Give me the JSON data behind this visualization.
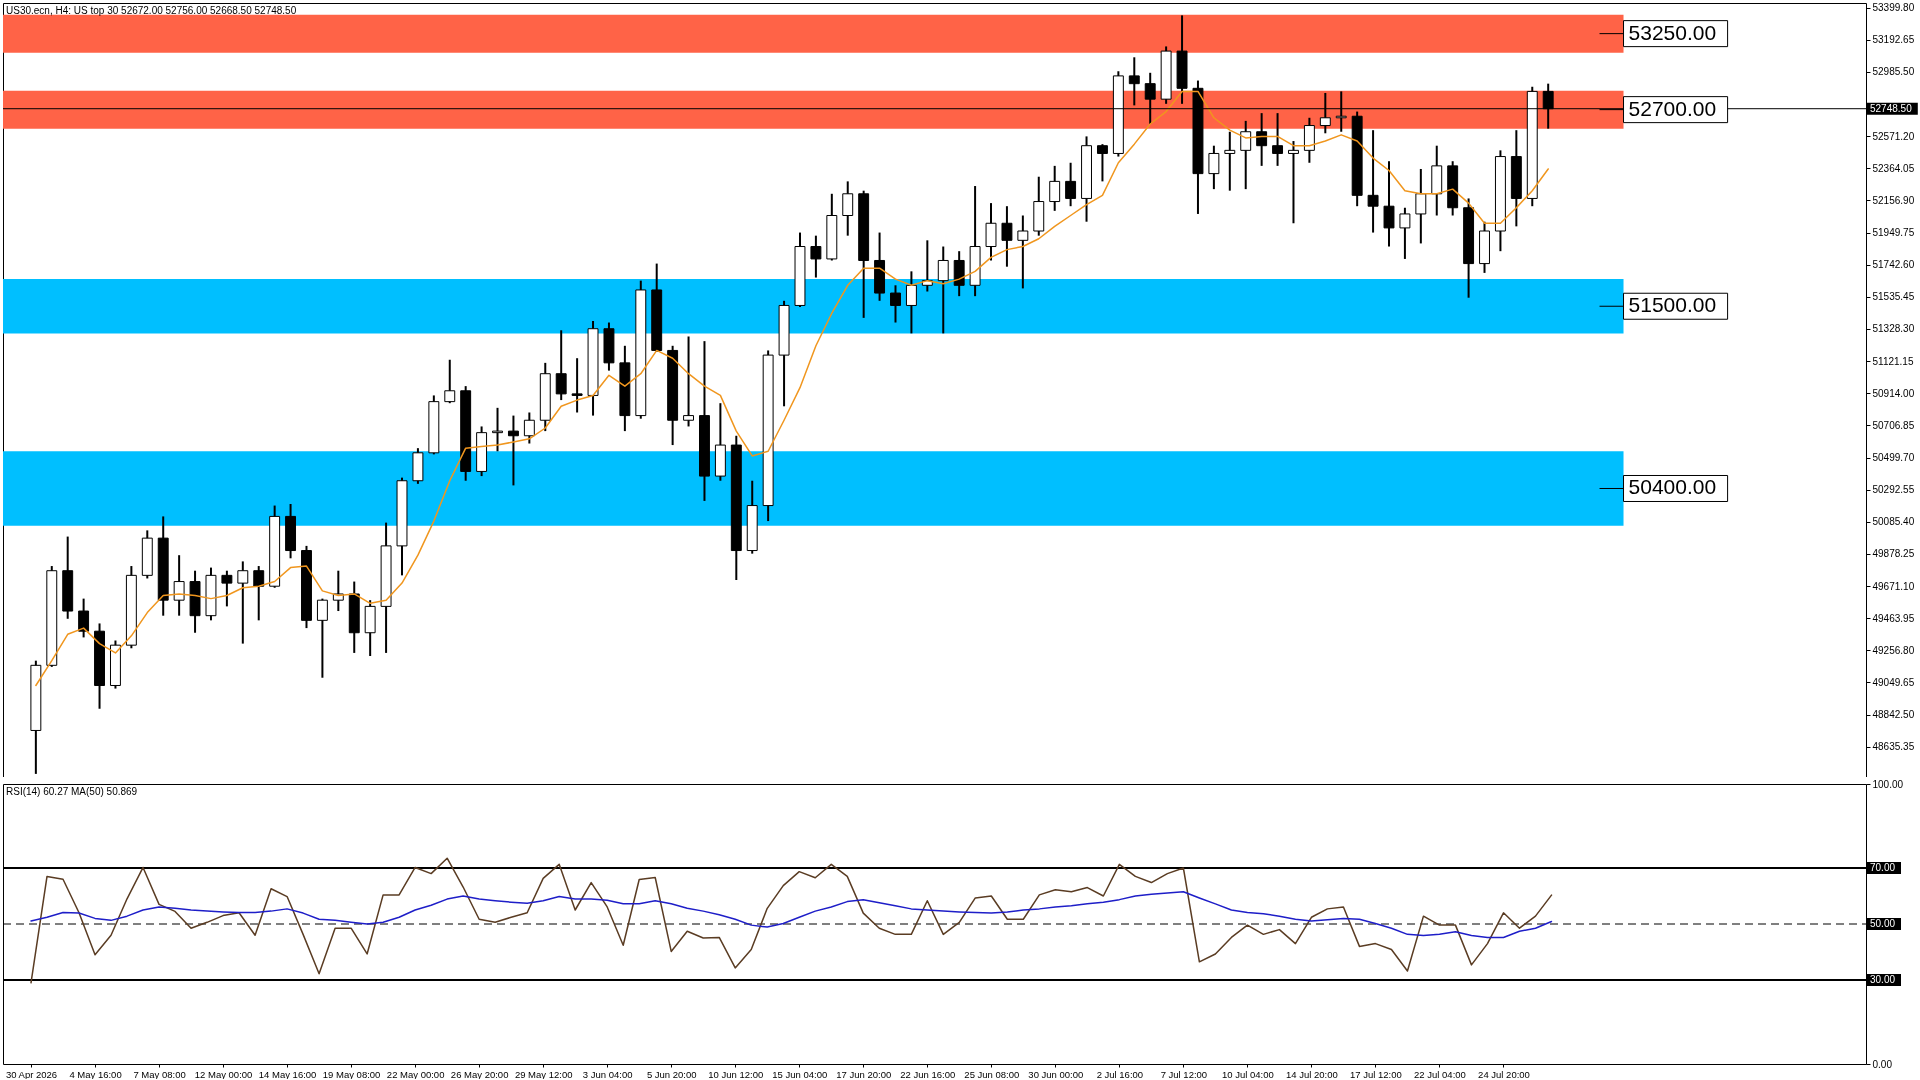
{
  "chart_data": [
    {
      "type": "candlestick",
      "title": "US30.ecn, H4:  US top 30  52672.00 52756.00 52668.50 52748.50",
      "categories": [
        null,
        null,
        null,
        null,
        null,
        null,
        null,
        null,
        null,
        null,
        null,
        null,
        null,
        null,
        null,
        null,
        null,
        null,
        null,
        null,
        null,
        null,
        null,
        null,
        null,
        null,
        null,
        null,
        null,
        null,
        null,
        null,
        null,
        null,
        null,
        null,
        null,
        null,
        null,
        null,
        null,
        null,
        null,
        null,
        null,
        null,
        null,
        null,
        null,
        null,
        null,
        null,
        null,
        null,
        null,
        null,
        null,
        null,
        null,
        null,
        null,
        null,
        null,
        null,
        null,
        null,
        null,
        null,
        null,
        null,
        null,
        null,
        null,
        null,
        null,
        null,
        null,
        null,
        null,
        null,
        null,
        null,
        null,
        null,
        null,
        null,
        null,
        null,
        null,
        null,
        null,
        null,
        null,
        null,
        null,
        null
      ],
      "ohlc": [
        [
          48740,
          49190,
          48460,
          49160
        ],
        [
          49160,
          49800,
          49150,
          49770
        ],
        [
          49770,
          49990,
          49460,
          49510
        ],
        [
          49510,
          49590,
          49340,
          49380
        ],
        [
          49380,
          49430,
          48880,
          49030
        ],
        [
          49030,
          49320,
          49010,
          49290
        ],
        [
          49290,
          49800,
          49270,
          49740
        ],
        [
          49740,
          50030,
          49720,
          49980
        ],
        [
          49980,
          50120,
          49480,
          49580
        ],
        [
          49580,
          49870,
          49480,
          49700
        ],
        [
          49700,
          49770,
          49370,
          49480
        ],
        [
          49480,
          49790,
          49450,
          49740
        ],
        [
          49740,
          49770,
          49540,
          49690
        ],
        [
          49690,
          49830,
          49300,
          49770
        ],
        [
          49770,
          49800,
          49450,
          49670
        ],
        [
          49670,
          50190,
          49660,
          50120
        ],
        [
          50120,
          50200,
          49850,
          49900
        ],
        [
          49900,
          49930,
          49400,
          49450
        ],
        [
          49450,
          49590,
          49080,
          49580
        ],
        [
          49580,
          49770,
          49510,
          49620
        ],
        [
          49620,
          49700,
          49240,
          49370
        ],
        [
          49370,
          49580,
          49220,
          49540
        ],
        [
          49540,
          50080,
          49240,
          49930
        ],
        [
          49930,
          50370,
          49740,
          50350
        ],
        [
          50350,
          50560,
          50330,
          50530
        ],
        [
          50530,
          50900,
          50520,
          50860
        ],
        [
          50860,
          51130,
          50850,
          50930
        ],
        [
          50930,
          50960,
          50350,
          50410
        ],
        [
          50410,
          50700,
          50380,
          50660
        ],
        [
          50660,
          50820,
          50540,
          50670
        ],
        [
          50670,
          50770,
          50320,
          50640
        ],
        [
          50640,
          50790,
          50590,
          50740
        ],
        [
          50740,
          51110,
          50670,
          51040
        ],
        [
          51040,
          51320,
          50870,
          50910
        ],
        [
          50910,
          51140,
          50790,
          50900
        ],
        [
          50900,
          51380,
          50770,
          51330
        ],
        [
          51330,
          51370,
          51060,
          51110
        ],
        [
          51110,
          51220,
          50670,
          50770
        ],
        [
          50770,
          51640,
          50750,
          51580
        ],
        [
          51580,
          51750,
          51180,
          51190
        ],
        [
          51190,
          51220,
          50580,
          50740
        ],
        [
          50740,
          51280,
          50700,
          50770
        ],
        [
          50770,
          51250,
          50220,
          50380
        ],
        [
          50380,
          50850,
          50350,
          50580
        ],
        [
          50580,
          50640,
          49710,
          49900
        ],
        [
          49900,
          50350,
          49880,
          50190
        ],
        [
          50190,
          51190,
          50090,
          51160
        ],
        [
          51160,
          51510,
          50830,
          51480
        ],
        [
          51480,
          51950,
          51470,
          51860
        ],
        [
          51860,
          51930,
          51660,
          51780
        ],
        [
          51780,
          52200,
          51770,
          52060
        ],
        [
          52060,
          52280,
          51930,
          52200
        ],
        [
          52200,
          52220,
          51400,
          51770
        ],
        [
          51770,
          51950,
          51510,
          51560
        ],
        [
          51560,
          51610,
          51370,
          51480
        ],
        [
          51480,
          51700,
          51300,
          51610
        ],
        [
          51610,
          51900,
          51570,
          51640
        ],
        [
          51640,
          51860,
          51300,
          51770
        ],
        [
          51770,
          51830,
          51540,
          51610
        ],
        [
          51610,
          52250,
          51540,
          51860
        ],
        [
          51860,
          52140,
          51770,
          52010
        ],
        [
          52010,
          52120,
          51730,
          51900
        ],
        [
          51900,
          52060,
          51590,
          51960
        ],
        [
          51960,
          52310,
          51930,
          52150
        ],
        [
          52150,
          52380,
          52090,
          52280
        ],
        [
          52280,
          52400,
          52120,
          52170
        ],
        [
          52170,
          52570,
          52020,
          52510
        ],
        [
          52510,
          52520,
          52280,
          52460
        ],
        [
          52460,
          52990,
          52440,
          52960
        ],
        [
          52960,
          53080,
          52770,
          52910
        ],
        [
          52910,
          52980,
          52650,
          52810
        ],
        [
          52810,
          53150,
          52780,
          53120
        ],
        [
          53120,
          53350,
          52780,
          52880
        ],
        [
          52880,
          52930,
          52070,
          52330
        ],
        [
          52330,
          52510,
          52230,
          52460
        ],
        [
          52460,
          52600,
          52220,
          52480
        ],
        [
          52480,
          52670,
          52230,
          52600
        ],
        [
          52600,
          52720,
          52380,
          52510
        ],
        [
          52510,
          52720,
          52380,
          52460
        ],
        [
          52460,
          52540,
          52010,
          52480
        ],
        [
          52480,
          52690,
          52400,
          52640
        ],
        [
          52640,
          52850,
          52590,
          52690
        ],
        [
          52690,
          52860,
          52600,
          52700
        ],
        [
          52700,
          52730,
          52120,
          52190
        ],
        [
          52190,
          52610,
          51950,
          52120
        ],
        [
          52120,
          52410,
          51860,
          51980
        ],
        [
          51980,
          52110,
          51780,
          52070
        ],
        [
          52070,
          52360,
          51880,
          52200
        ],
        [
          52200,
          52510,
          52060,
          52380
        ],
        [
          52380,
          52410,
          52060,
          52110
        ],
        [
          52110,
          52170,
          51530,
          51750
        ],
        [
          51750,
          52020,
          51690,
          51960
        ],
        [
          51960,
          52480,
          51830,
          52440
        ],
        [
          52440,
          52610,
          51990,
          52170
        ],
        [
          52170,
          52890,
          52120,
          52860
        ],
        [
          52860,
          52910,
          52620,
          52748.5
        ]
      ],
      "series": [
        {
          "type": "line",
          "color": "#f0961e",
          "values": [
            49030,
            49190,
            49360,
            49400,
            49300,
            49240,
            49350,
            49500,
            49610,
            49620,
            49610,
            49590,
            49610,
            49660,
            49670,
            49700,
            49790,
            49800,
            49640,
            49610,
            49620,
            49560,
            49580,
            49690,
            49870,
            50090,
            50350,
            50560,
            50570,
            50580,
            50600,
            50620,
            50690,
            50830,
            50870,
            50900,
            51030,
            50960,
            51040,
            51190,
            51140,
            51040,
            50960,
            50900,
            50670,
            50510,
            50540,
            50740,
            50950,
            51220,
            51430,
            51610,
            51720,
            51720,
            51650,
            51610,
            51640,
            51620,
            51650,
            51700,
            51790,
            51840,
            51860,
            51910,
            51990,
            52060,
            52130,
            52190,
            52400,
            52520,
            52650,
            52730,
            52860,
            52860,
            52690,
            52610,
            52560,
            52570,
            52570,
            52510,
            52510,
            52540,
            52580,
            52540,
            52430,
            52350,
            52220,
            52200,
            52200,
            52230,
            52140,
            52010,
            52010,
            52110,
            52220,
            52360
          ]
        }
      ],
      "ylim": [
        48440,
        53430
      ],
      "yticks": [
        {
          "value": 53399.8,
          "label": "53399.80"
        },
        {
          "value": 53192.65,
          "label": "53192.65"
        },
        {
          "value": 52985.5,
          "label": "52985.50"
        },
        {
          "value": 52571.2,
          "label": "52571.20"
        },
        {
          "value": 52364.05,
          "label": "52364.05"
        },
        {
          "value": 52156.9,
          "label": "52156.90"
        },
        {
          "value": 51949.75,
          "label": "51949.75"
        },
        {
          "value": 51742.6,
          "label": "51742.60"
        },
        {
          "value": 51535.45,
          "label": "51535.45"
        },
        {
          "value": 51328.3,
          "label": "51328.30"
        },
        {
          "value": 51121.15,
          "label": "51121.15"
        },
        {
          "value": 50914,
          "label": "50914.00"
        },
        {
          "value": 50706.85,
          "label": "50706.85"
        },
        {
          "value": 50499.7,
          "label": "50499.70"
        },
        {
          "value": 50292.55,
          "label": "50292.55"
        },
        {
          "value": 50085.4,
          "label": "50085.40"
        },
        {
          "value": 49878.25,
          "label": "49878.25"
        },
        {
          "value": 49671.1,
          "label": "49671.10"
        },
        {
          "value": 49463.95,
          "label": "49463.95"
        },
        {
          "value": 49256.8,
          "label": "49256.80"
        },
        {
          "value": 49049.65,
          "label": "49049.65"
        },
        {
          "value": 48842.5,
          "label": "48842.50"
        },
        {
          "value": 48635.35,
          "label": "48635.35"
        }
      ],
      "bands": [
        {
          "axis": "y",
          "from": 53110,
          "to": 53355,
          "label": "53250.00",
          "color": "#ff6347"
        },
        {
          "axis": "y",
          "from": 52620,
          "to": 52865,
          "label": "52700.00",
          "color": "#ff6347"
        },
        {
          "axis": "y",
          "from": 51300,
          "to": 51650,
          "label": "51500.00",
          "color": "#00bfff"
        },
        {
          "axis": "y",
          "from": 50060,
          "to": 50540,
          "label": "50400.00",
          "color": "#00bfff"
        }
      ],
      "ref_lines": [
        {
          "axis": "y",
          "value": 52748.5,
          "label": "52748.50",
          "color": "#000000"
        }
      ],
      "tick_labels": "y"
    },
    {
      "type": "line",
      "title": "RSI(14) 60.27 MA(50) 50.869",
      "categories": [
        "30 Apr 2026",
        null,
        null,
        null,
        "4 May 16:00",
        null,
        null,
        null,
        "7 May 08:00",
        null,
        null,
        null,
        "12 May 00:00",
        null,
        null,
        null,
        "14 May 16:00",
        null,
        null,
        null,
        "19 May 08:00",
        null,
        null,
        null,
        "22 May 00:00",
        null,
        null,
        null,
        "26 May 20:00",
        null,
        null,
        null,
        "29 May 12:00",
        null,
        null,
        null,
        "3 Jun 04:00",
        null,
        null,
        null,
        "5 Jun 20:00",
        null,
        null,
        null,
        "10 Jun 12:00",
        null,
        null,
        null,
        "15 Jun 04:00",
        null,
        null,
        null,
        "17 Jun 20:00",
        null,
        null,
        null,
        "22 Jun 16:00",
        null,
        null,
        null,
        "25 Jun 08:00",
        null,
        null,
        null,
        "30 Jun 00:00",
        null,
        null,
        null,
        "2 Jul 16:00",
        null,
        null,
        null,
        "7 Jul 12:00",
        null,
        null,
        null,
        "10 Jul 04:00",
        null,
        null,
        null,
        "14 Jul 20:00",
        null,
        null,
        null,
        "17 Jul 12:00",
        null,
        null,
        null,
        "22 Jul 04:00",
        null,
        null,
        null,
        "24 Jul 20:00",
        null,
        null,
        null
      ],
      "series": [
        {
          "color": "#5a3c23",
          "values": [
            29,
            67,
            66,
            54,
            39,
            46,
            59,
            70.2,
            57,
            54.5,
            48.5,
            50.6,
            53,
            54,
            46,
            62.6,
            59.8,
            46.3,
            32.2,
            48.5,
            48.5,
            39.3,
            60.4,
            60.4,
            70.2,
            68,
            73.5,
            63.2,
            51.7,
            50.6,
            52.4,
            54,
            66.3,
            71.3,
            55,
            64.8,
            56.1,
            42.4,
            65.9,
            66.6,
            40.2,
            47.4,
            45,
            45.2,
            34.3,
            40.9,
            55.6,
            63.7,
            68.7,
            66.5,
            71.3,
            67,
            53.9,
            48.5,
            46.3,
            46.3,
            58.3,
            46.3,
            50.6,
            59.3,
            60,
            51.7,
            51.7,
            60.4,
            62.2,
            61.5,
            63,
            60,
            71.3,
            67,
            64.8,
            68,
            70,
            36.5,
            39.3,
            45.2,
            49.6,
            46.3,
            48,
            43,
            52.4,
            55.4,
            56.1,
            42,
            43,
            40.9,
            33.2,
            52.8,
            49.6,
            49.6,
            35.4,
            43,
            54,
            48.5,
            52.8,
            60.3
          ]
        },
        {
          "color": "#1e1ec8",
          "values": [
            51.1,
            52.4,
            54.1,
            53.9,
            52,
            51.3,
            52.8,
            55,
            56.1,
            55.6,
            55,
            54.6,
            54.3,
            54.1,
            54.1,
            54.6,
            55.4,
            53.9,
            51.7,
            51.3,
            50.6,
            50,
            50.6,
            52.4,
            55,
            56.7,
            58.9,
            60,
            58.9,
            58.3,
            57.8,
            57.4,
            58.3,
            59.8,
            58.9,
            58.9,
            58.5,
            57.2,
            57.2,
            58.3,
            57.2,
            55.6,
            54.6,
            53.3,
            51.7,
            49.6,
            48.9,
            50.2,
            52.4,
            54.6,
            56.1,
            58,
            58.7,
            57.6,
            56.5,
            55.4,
            55,
            54.6,
            54.3,
            54.1,
            53.9,
            54.3,
            55,
            55.4,
            56.1,
            56.5,
            57.2,
            57.8,
            58.7,
            60,
            60.6,
            61.1,
            61.5,
            59.3,
            57.2,
            55,
            54.1,
            53.7,
            52.8,
            51.7,
            51.1,
            51.5,
            52,
            51.7,
            50.2,
            48.5,
            46.3,
            45.9,
            46.3,
            47.2,
            45.9,
            45.2,
            45.2,
            47.4,
            48.5,
            50.9
          ]
        }
      ],
      "ylim": [
        0,
        100
      ],
      "yticks": [
        {
          "value": 0,
          "label": "0.00"
        },
        {
          "value": 100,
          "label": "100.00"
        }
      ],
      "ref_lines": [
        {
          "axis": "y",
          "value": 70,
          "label": "70.00",
          "color": "#000000",
          "line_style": "solid"
        },
        {
          "axis": "y",
          "value": 50,
          "label": "50.00",
          "color": "#000000",
          "line_style": "dashed"
        },
        {
          "axis": "y",
          "value": 30,
          "label": "30.00",
          "color": "#000000",
          "line_style": "solid"
        }
      ]
    }
  ]
}
